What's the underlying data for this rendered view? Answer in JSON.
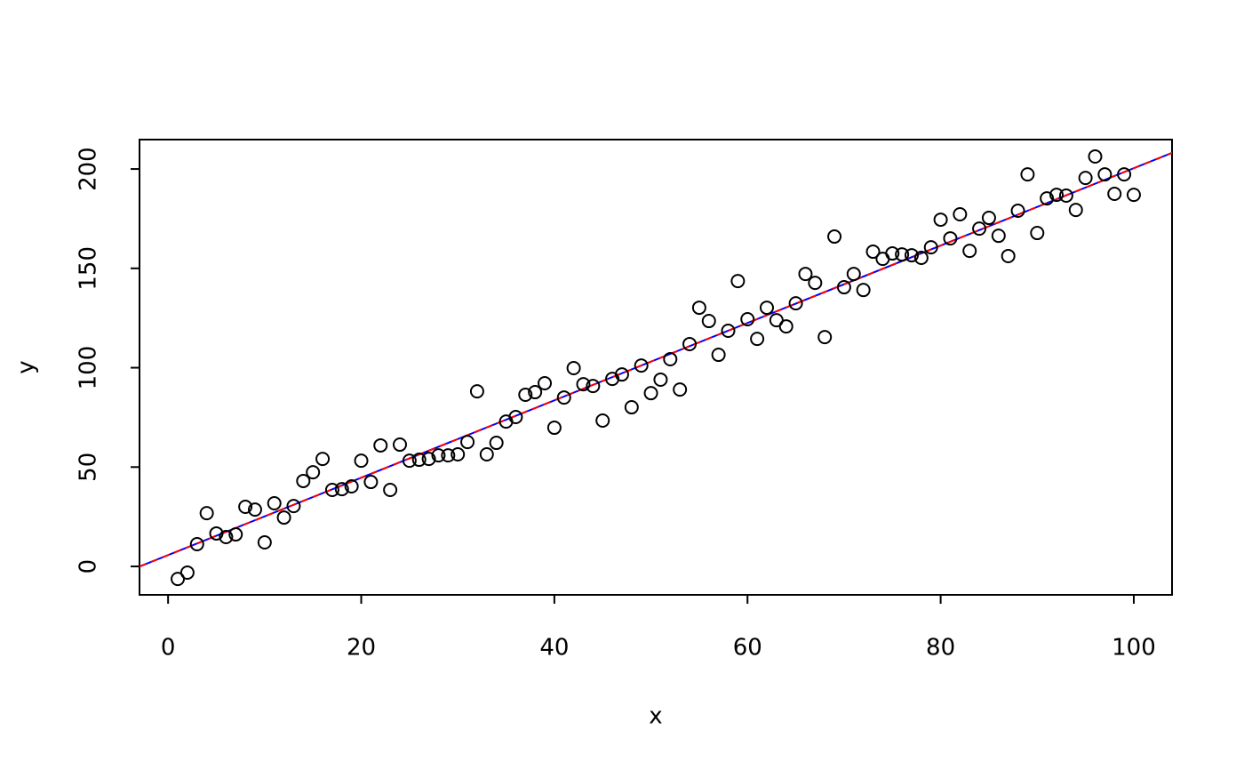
{
  "chart_data": {
    "type": "scatter",
    "x_label": "x",
    "y_label": "y",
    "x": [
      1,
      2,
      3,
      4,
      5,
      6,
      7,
      8,
      9,
      10,
      11,
      12,
      13,
      14,
      15,
      16,
      17,
      18,
      19,
      20,
      21,
      22,
      23,
      24,
      25,
      26,
      27,
      28,
      29,
      30,
      31,
      32,
      33,
      34,
      35,
      36,
      37,
      38,
      39,
      40,
      41,
      42,
      43,
      44,
      45,
      46,
      47,
      48,
      49,
      50,
      51,
      52,
      53,
      54,
      55,
      56,
      57,
      58,
      59,
      60,
      61,
      62,
      63,
      64,
      65,
      66,
      67,
      68,
      69,
      70,
      71,
      72,
      73,
      74,
      75,
      76,
      77,
      78,
      79,
      80,
      81,
      82,
      83,
      84,
      85,
      86,
      87,
      88,
      89,
      90,
      91,
      92,
      93,
      94,
      95,
      96,
      97,
      98,
      99,
      100
    ],
    "series": [
      {
        "name": "y",
        "color": "#000000",
        "values": [
          -6.3,
          -3.1,
          11.2,
          26.8,
          16.6,
          14.8,
          16.1,
          30.0,
          28.6,
          12.1,
          31.8,
          24.6,
          30.4,
          43.0,
          47.4,
          54.1,
          38.5,
          38.9,
          40.3,
          53.2,
          42.5,
          60.9,
          38.5,
          61.3,
          53.2,
          53.7,
          54.1,
          55.9,
          55.9,
          56.4,
          62.6,
          88.1,
          56.4,
          62.2,
          72.9,
          75.2,
          86.4,
          87.7,
          92.2,
          69.8,
          85.0,
          99.8,
          91.7,
          90.8,
          73.4,
          94.4,
          96.6,
          80.1,
          101.1,
          87.2,
          94.0,
          104.3,
          89.0,
          111.9,
          130.2,
          123.5,
          106.5,
          118.6,
          143.6,
          124.4,
          114.5,
          130.2,
          123.9,
          120.8,
          132.4,
          147.2,
          142.7,
          115.4,
          166.0,
          140.5,
          147.2,
          139.1,
          158.4,
          154.8,
          157.5,
          157.0,
          156.6,
          155.3,
          160.6,
          174.5,
          165.1,
          177.2,
          158.8,
          170.0,
          175.4,
          166.4,
          156.2,
          179.0,
          197.3,
          167.8,
          185.2,
          187.0,
          186.6,
          179.4,
          195.5,
          206.3,
          197.3,
          187.5,
          197.3,
          187.0
        ]
      }
    ],
    "lines": [
      {
        "intercept": 5.7,
        "slope": 1.947,
        "color": "#0000ff",
        "dashed": false
      },
      {
        "intercept": 5.7,
        "slope": 1.947,
        "color": "#ff0000",
        "dashed": true
      }
    ],
    "xlim": [
      -2.96,
      103.96
    ],
    "xticks": [
      0,
      20,
      40,
      60,
      80,
      100
    ],
    "ylim": [
      -14.3,
      214.8
    ],
    "yticks": [
      0,
      50,
      100,
      150,
      200
    ]
  }
}
